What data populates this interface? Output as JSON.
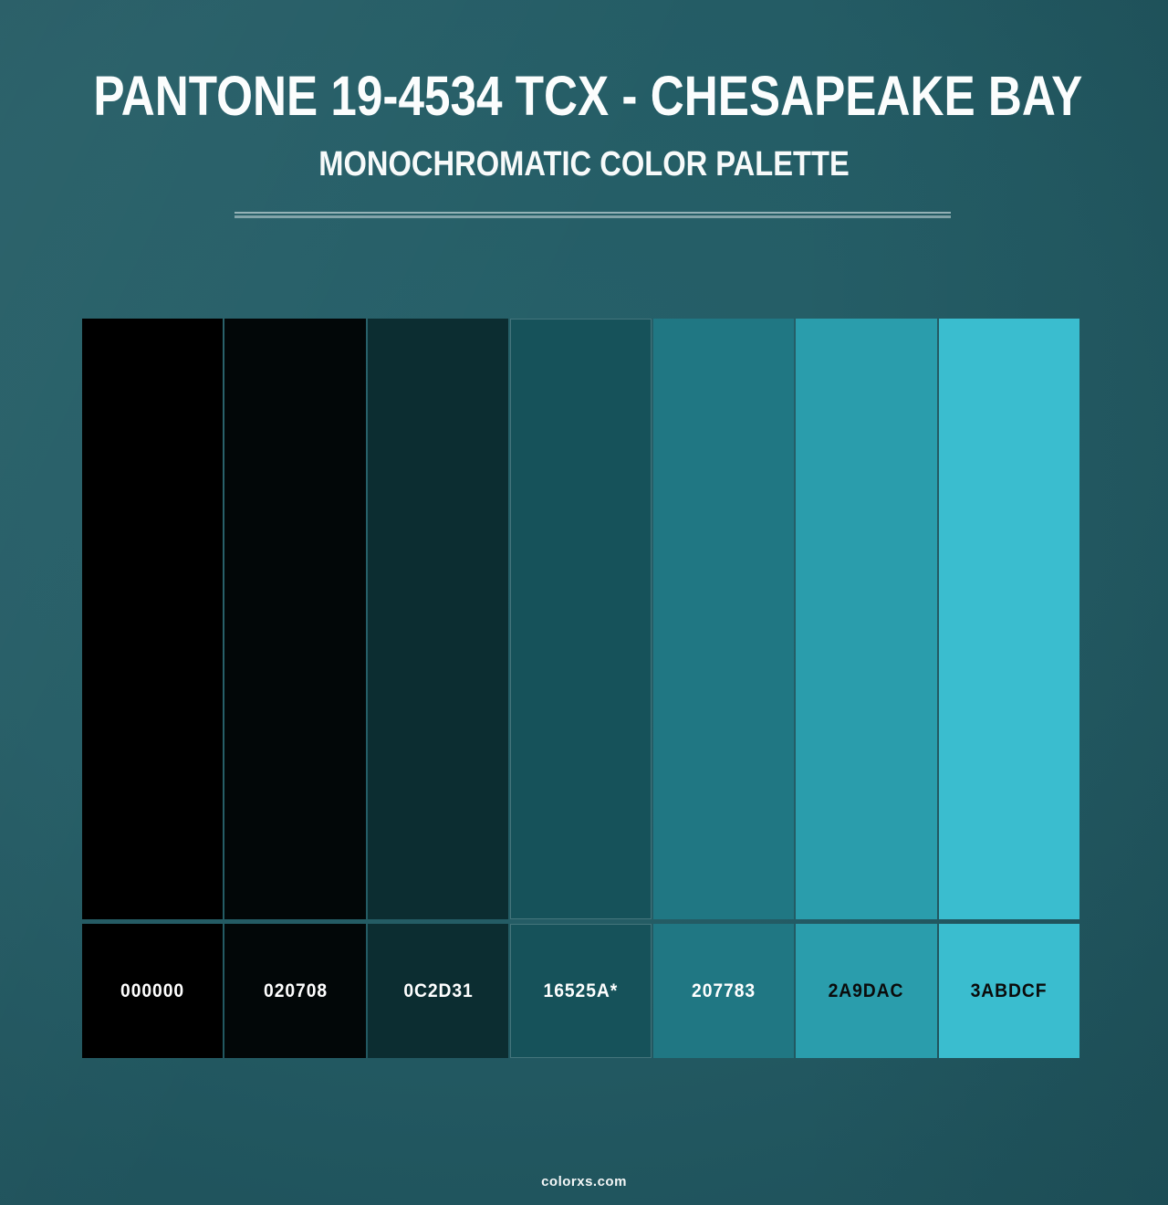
{
  "page": {
    "title": "PANTONE 19-4534 TCX - CHESAPEAKE BAY",
    "subtitle": "MONOCHROMATIC COLOR PALETTE",
    "watermark": "colorxs.com",
    "background_color": "#235962",
    "title_color": "#fbfdfd"
  },
  "palette": {
    "swatches": [
      {
        "hex": "#000000",
        "label": "000000",
        "label_text_color": "#ffffff",
        "highlighted": false
      },
      {
        "hex": "#020708",
        "label": "020708",
        "label_text_color": "#ffffff",
        "highlighted": false
      },
      {
        "hex": "#0C2D31",
        "label": "0C2D31",
        "label_text_color": "#ffffff",
        "highlighted": false
      },
      {
        "hex": "#16525A",
        "label": "16525A*",
        "label_text_color": "#ffffff",
        "highlighted": true
      },
      {
        "hex": "#207783",
        "label": "207783",
        "label_text_color": "#ffffff",
        "highlighted": false
      },
      {
        "hex": "#2A9DAC",
        "label": "2A9DAC",
        "label_text_color": "#0b0b0b",
        "highlighted": false
      },
      {
        "hex": "#3ABDCF",
        "label": "3ABDCF",
        "label_text_color": "#0b0b0b",
        "highlighted": false
      }
    ]
  }
}
